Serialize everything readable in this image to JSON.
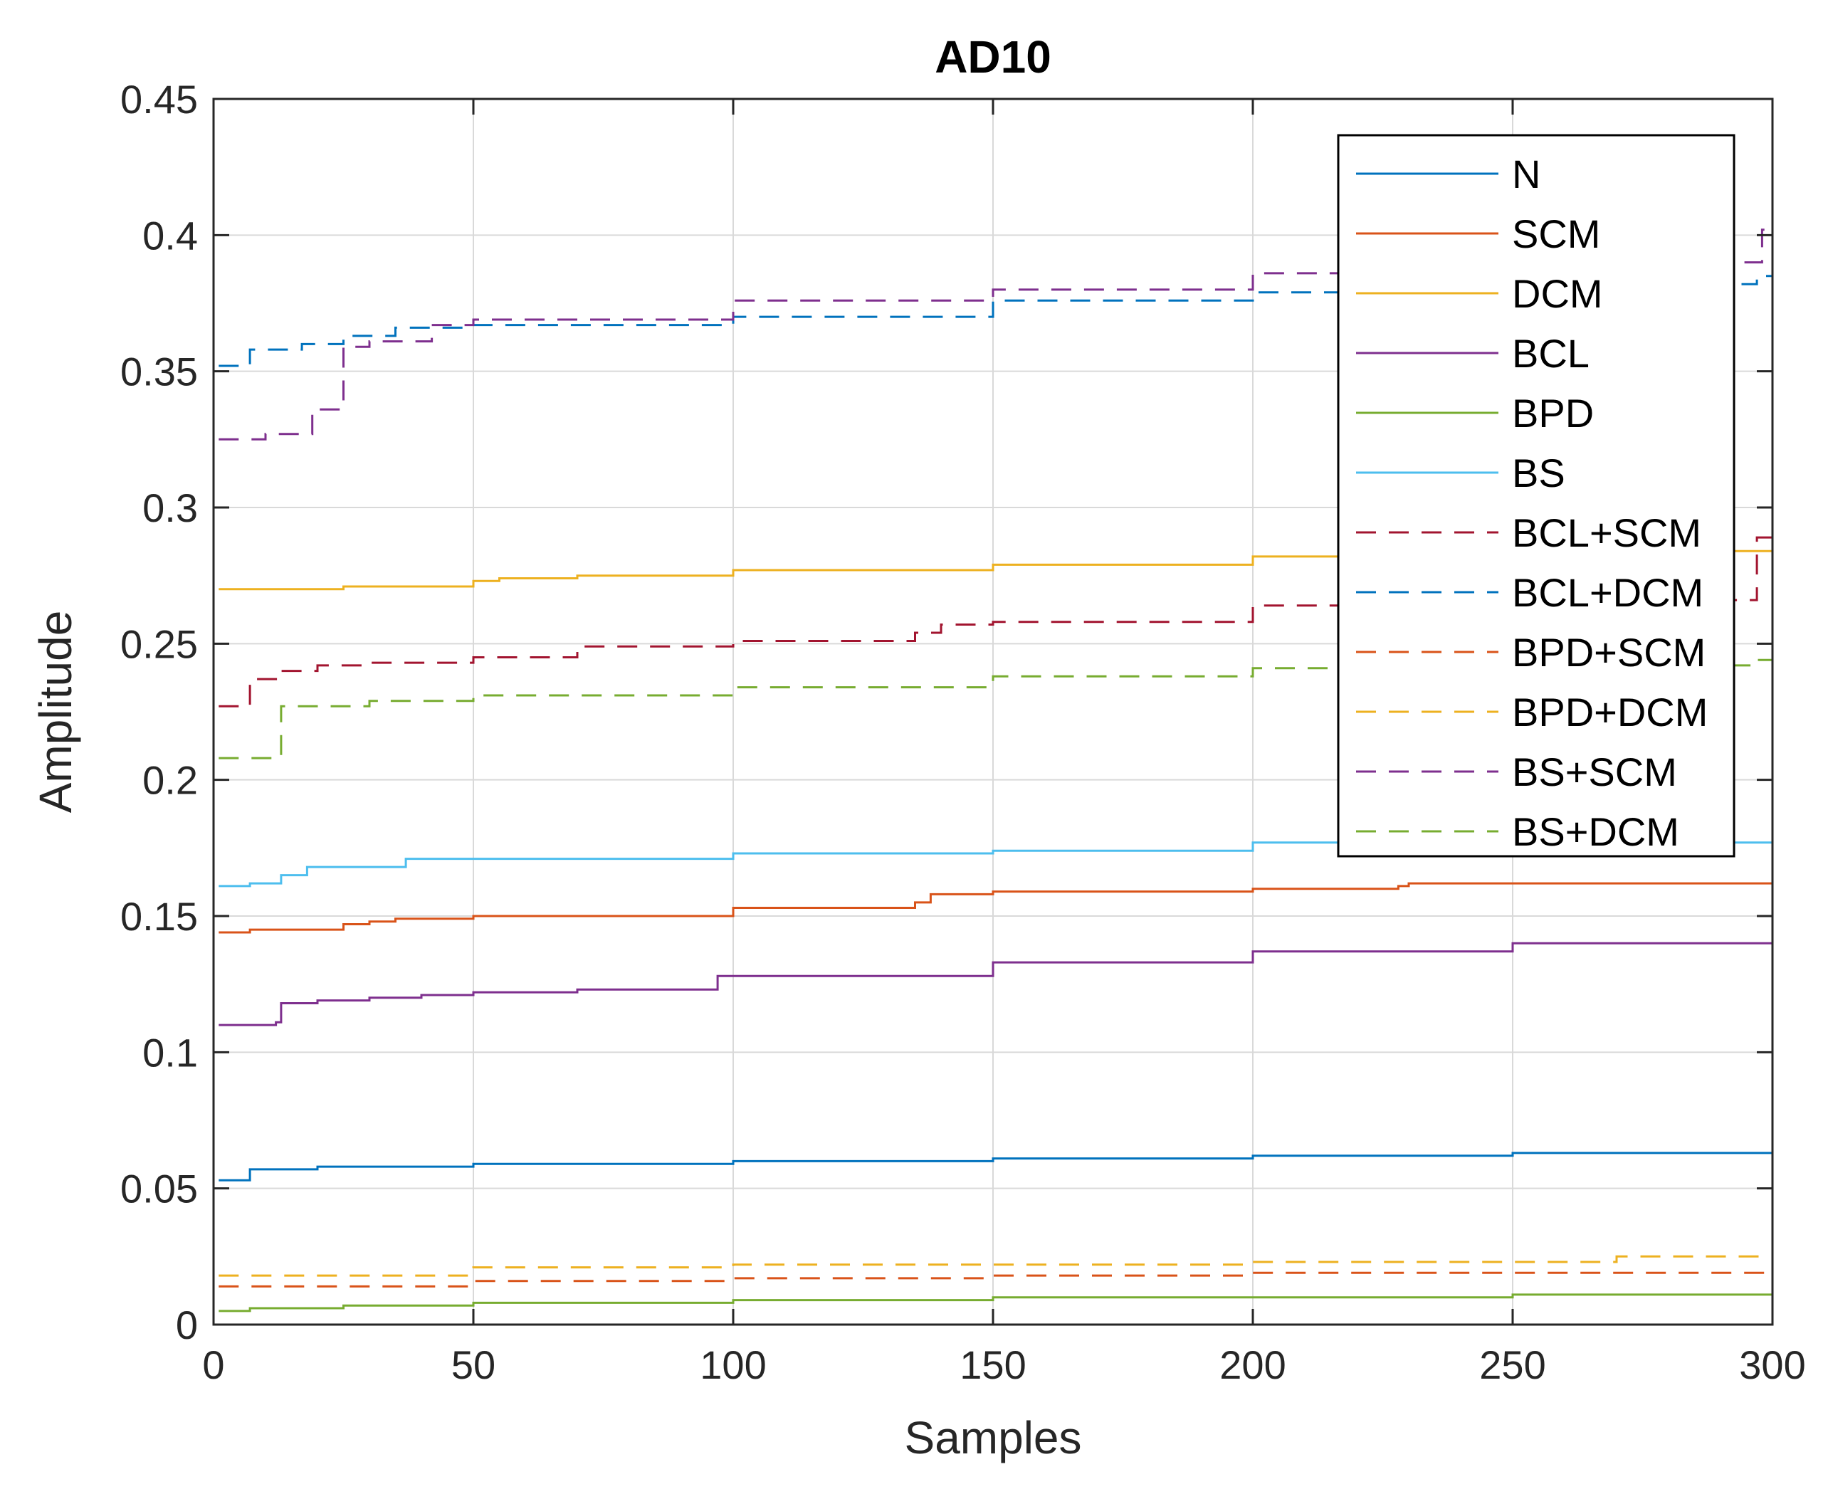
{
  "chart_data": {
    "type": "line",
    "title": "AD10",
    "xlabel": "Samples",
    "ylabel": "Amplitude",
    "xlim": [
      0,
      300
    ],
    "ylim": [
      0,
      0.45
    ],
    "xticks": [
      0,
      50,
      100,
      150,
      200,
      250,
      300
    ],
    "xtick_labels": [
      "0",
      "50",
      "100",
      "150",
      "200",
      "250",
      "300"
    ],
    "yticks": [
      0,
      0.05,
      0.1,
      0.15,
      0.2,
      0.25,
      0.3,
      0.35,
      0.4,
      0.45
    ],
    "ytick_labels": [
      "0",
      "0.05",
      "0.1",
      "0.15",
      "0.2",
      "0.25",
      "0.3",
      "0.35",
      "0.4",
      "0.45"
    ],
    "grid": true,
    "legend_position": "top-right",
    "series": [
      {
        "name": "N",
        "color": "#0072BD",
        "dash": false,
        "x": [
          1,
          6,
          7,
          20,
          50,
          100,
          150,
          200,
          250,
          300
        ],
        "y": [
          0.053,
          0.053,
          0.057,
          0.058,
          0.059,
          0.06,
          0.061,
          0.062,
          0.063,
          0.064
        ]
      },
      {
        "name": "SCM",
        "color": "#D95319",
        "dash": false,
        "x": [
          1,
          6,
          7,
          18,
          25,
          30,
          35,
          50,
          100,
          135,
          138,
          150,
          200,
          228,
          230,
          300
        ],
        "y": [
          0.144,
          0.144,
          0.145,
          0.145,
          0.147,
          0.148,
          0.149,
          0.15,
          0.153,
          0.155,
          0.158,
          0.159,
          0.16,
          0.161,
          0.162,
          0.163
        ]
      },
      {
        "name": "DCM",
        "color": "#EDB120",
        "dash": false,
        "x": [
          1,
          6,
          7,
          25,
          50,
          55,
          70,
          100,
          150,
          200,
          250,
          300
        ],
        "y": [
          0.27,
          0.27,
          0.27,
          0.271,
          0.273,
          0.274,
          0.275,
          0.277,
          0.279,
          0.282,
          0.284,
          0.287
        ]
      },
      {
        "name": "BCL",
        "color": "#7E2F8E",
        "dash": false,
        "x": [
          1,
          12,
          13,
          20,
          30,
          40,
          50,
          70,
          97,
          100,
          150,
          200,
          250,
          300
        ],
        "y": [
          0.11,
          0.111,
          0.118,
          0.119,
          0.12,
          0.121,
          0.122,
          0.123,
          0.128,
          0.128,
          0.133,
          0.137,
          0.14,
          0.144
        ]
      },
      {
        "name": "BPD",
        "color": "#77AC30",
        "dash": false,
        "x": [
          1,
          6,
          7,
          25,
          50,
          100,
          150,
          200,
          250,
          300
        ],
        "y": [
          0.005,
          0.005,
          0.006,
          0.007,
          0.008,
          0.009,
          0.01,
          0.01,
          0.011,
          0.011
        ]
      },
      {
        "name": "BS",
        "color": "#4DBEEE",
        "dash": false,
        "x": [
          1,
          6,
          7,
          12,
          13,
          17,
          18,
          37,
          50,
          100,
          150,
          200,
          250,
          300
        ],
        "y": [
          0.161,
          0.161,
          0.162,
          0.162,
          0.165,
          0.165,
          0.168,
          0.171,
          0.171,
          0.173,
          0.174,
          0.177,
          0.177,
          0.178
        ]
      },
      {
        "name": "BCL+SCM",
        "color": "#A2142F",
        "dash": true,
        "x": [
          1,
          6,
          7,
          13,
          20,
          30,
          50,
          70,
          100,
          135,
          140,
          150,
          200,
          250,
          297,
          300
        ],
        "y": [
          0.227,
          0.227,
          0.237,
          0.24,
          0.242,
          0.243,
          0.245,
          0.249,
          0.251,
          0.254,
          0.257,
          0.258,
          0.264,
          0.266,
          0.289,
          0.289
        ]
      },
      {
        "name": "BCL+DCM",
        "color": "#0072BD",
        "dash": true,
        "x": [
          1,
          6,
          7,
          17,
          25,
          35,
          50,
          100,
          150,
          200,
          250,
          297,
          300
        ],
        "y": [
          0.352,
          0.352,
          0.358,
          0.36,
          0.363,
          0.366,
          0.367,
          0.37,
          0.376,
          0.379,
          0.382,
          0.385,
          0.385
        ]
      },
      {
        "name": "BPD+SCM",
        "color": "#D95319",
        "dash": true,
        "x": [
          1,
          50,
          100,
          150,
          200,
          250,
          300
        ],
        "y": [
          0.014,
          0.016,
          0.017,
          0.018,
          0.019,
          0.019,
          0.02
        ]
      },
      {
        "name": "BPD+DCM",
        "color": "#EDB120",
        "dash": true,
        "x": [
          1,
          50,
          100,
          150,
          200,
          250,
          270,
          300
        ],
        "y": [
          0.018,
          0.021,
          0.022,
          0.022,
          0.023,
          0.023,
          0.025,
          0.026
        ]
      },
      {
        "name": "BS+SCM",
        "color": "#7E2F8E",
        "dash": true,
        "x": [
          1,
          10,
          19,
          24,
          25,
          30,
          42,
          50,
          100,
          150,
          200,
          250,
          298,
          300
        ],
        "y": [
          0.325,
          0.327,
          0.336,
          0.336,
          0.359,
          0.361,
          0.367,
          0.369,
          0.376,
          0.38,
          0.386,
          0.39,
          0.402,
          0.402
        ]
      },
      {
        "name": "BS+DCM",
        "color": "#77AC30",
        "dash": true,
        "x": [
          1,
          12,
          13,
          30,
          50,
          100,
          150,
          200,
          250,
          296,
          300
        ],
        "y": [
          0.208,
          0.209,
          0.227,
          0.229,
          0.231,
          0.234,
          0.238,
          0.241,
          0.242,
          0.244,
          0.244
        ]
      }
    ]
  }
}
